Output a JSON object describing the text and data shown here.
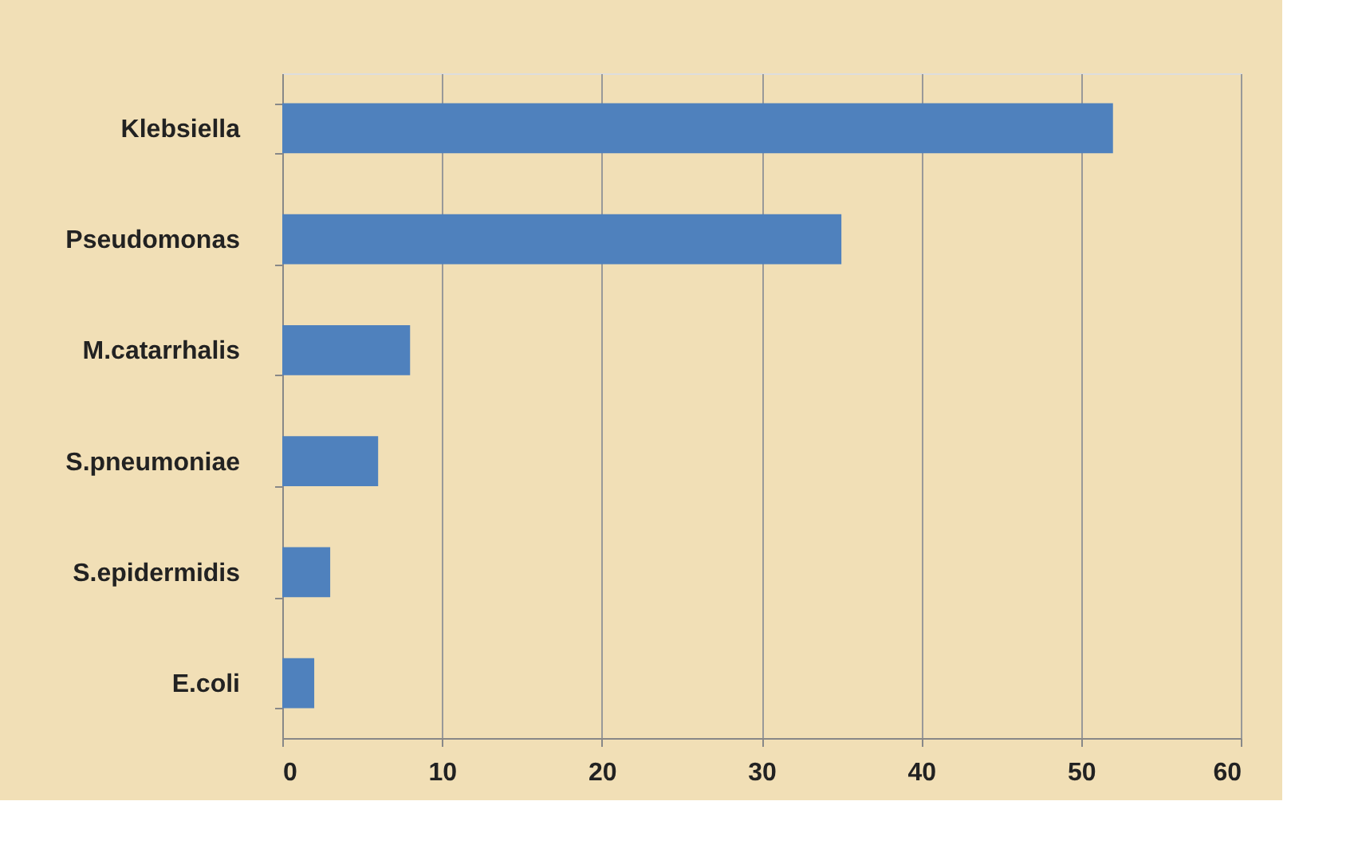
{
  "chart_data": {
    "type": "bar",
    "orientation": "horizontal",
    "categories": [
      "Klebsiella",
      "Pseudomonas",
      "M.catarrhalis",
      "S.pneumoniae",
      "S.epidermidis",
      "E.coli"
    ],
    "values": [
      52,
      35,
      8,
      6,
      3,
      2
    ],
    "color": "#4f81bd",
    "xlim": [
      0,
      60
    ],
    "xticks": [
      0,
      10,
      20,
      30,
      40,
      50,
      60
    ],
    "grid": "x"
  }
}
